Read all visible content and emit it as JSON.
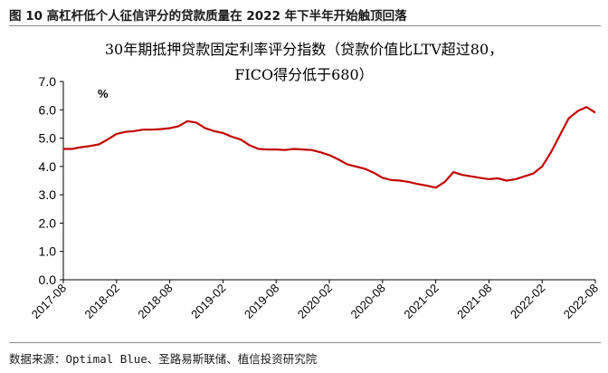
{
  "figure_caption": "图 10 高杠杆低个人征信评分的贷款质量在 2022 年下半年开始触顶回落",
  "source_note": "数据来源：Optimal Blue、圣路易斯联储、植信投资研究院",
  "chart_data": {
    "type": "line",
    "title_line1": "30年期抵押贷款固定利率评分指数（贷款价值比LTV超过80，",
    "title_line2": "FICO得分低于680）",
    "unit_label": "%",
    "ylim": [
      0.0,
      7.0
    ],
    "y_ticks": [
      "0.0",
      "1.0",
      "2.0",
      "3.0",
      "4.0",
      "5.0",
      "6.0",
      "7.0"
    ],
    "x_ticks": [
      "2017-08",
      "2018-02",
      "2018-08",
      "2019-02",
      "2019-08",
      "2020-02",
      "2020-08",
      "2021-02",
      "2021-08",
      "2022-02",
      "2022-08"
    ],
    "grid": false,
    "legend": "none",
    "line_color": "#c00000",
    "series": [
      {
        "x": [
          "2017-08",
          "2017-09",
          "2017-10",
          "2017-11",
          "2017-12",
          "2018-01",
          "2018-02",
          "2018-03",
          "2018-04",
          "2018-05",
          "2018-06",
          "2018-07",
          "2018-08",
          "2018-09",
          "2018-10",
          "2018-11",
          "2018-12",
          "2019-01",
          "2019-02",
          "2019-03",
          "2019-04",
          "2019-05",
          "2019-06",
          "2019-07",
          "2019-08",
          "2019-09",
          "2019-10",
          "2019-11",
          "2019-12",
          "2020-01",
          "2020-02",
          "2020-03",
          "2020-04",
          "2020-05",
          "2020-06",
          "2020-07",
          "2020-08",
          "2020-09",
          "2020-10",
          "2020-11",
          "2020-12",
          "2021-01",
          "2021-02",
          "2021-03",
          "2021-04",
          "2021-05",
          "2021-06",
          "2021-07",
          "2021-08",
          "2021-09",
          "2021-10",
          "2021-11",
          "2021-12",
          "2022-01",
          "2022-02",
          "2022-03",
          "2022-04",
          "2022-05",
          "2022-06",
          "2022-07",
          "2022-08"
        ],
        "values": [
          4.62,
          4.62,
          4.68,
          4.72,
          4.78,
          4.95,
          5.15,
          5.22,
          5.25,
          5.3,
          5.3,
          5.32,
          5.35,
          5.42,
          5.6,
          5.55,
          5.35,
          5.25,
          5.18,
          5.05,
          4.95,
          4.75,
          4.62,
          4.6,
          4.6,
          4.58,
          4.62,
          4.6,
          4.58,
          4.5,
          4.4,
          4.25,
          4.08,
          4.0,
          3.92,
          3.78,
          3.6,
          3.52,
          3.5,
          3.45,
          3.38,
          3.32,
          3.25,
          3.45,
          3.8,
          3.7,
          3.65,
          3.6,
          3.55,
          3.58,
          3.5,
          3.55,
          3.65,
          3.75,
          4.0,
          4.5,
          5.1,
          5.7,
          5.95,
          6.1,
          5.9
        ]
      }
    ]
  }
}
